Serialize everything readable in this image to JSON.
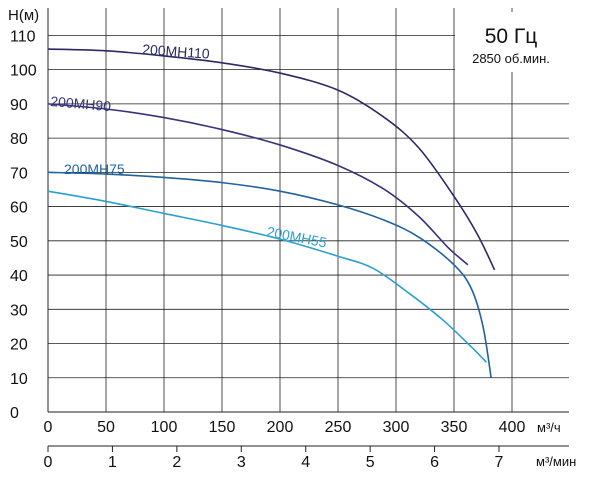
{
  "chart_data": {
    "type": "line",
    "ylabel": "H(м)",
    "xlabel_primary_unit": "м³/ч",
    "xlabel_secondary_unit": "м³/мин",
    "xlim": [
      0,
      400
    ],
    "ylim": [
      0,
      110
    ],
    "secondary_xlim": [
      0,
      7
    ],
    "y_ticks": [
      0,
      10,
      20,
      30,
      40,
      50,
      60,
      70,
      80,
      90,
      100,
      110
    ],
    "x_ticks": [
      0,
      50,
      100,
      150,
      200,
      250,
      300,
      350,
      400
    ],
    "secondary_x_ticks": [
      0,
      1,
      2,
      3,
      4,
      5,
      6,
      7
    ],
    "grid": true,
    "info": {
      "frequency": "50 Гц",
      "speed": "2850 об.мин."
    },
    "series": [
      {
        "name": "200MH110",
        "color": "#2b2a66",
        "x": [
          0,
          50,
          100,
          150,
          200,
          250,
          290,
          320,
          350,
          370,
          385
        ],
        "y": [
          106,
          105.5,
          104,
          102,
          99,
          94,
          86,
          77,
          63,
          52,
          41.5
        ]
      },
      {
        "name": "200MH90",
        "color": "#35337a",
        "x": [
          0,
          50,
          100,
          150,
          200,
          250,
          290,
          320,
          345,
          362
        ],
        "y": [
          90,
          88.5,
          86,
          82.5,
          78,
          72,
          65,
          57,
          48,
          43
        ]
      },
      {
        "name": "200MH75",
        "color": "#1f63a0",
        "x": [
          0,
          50,
          100,
          150,
          200,
          250,
          290,
          320,
          350,
          365,
          375,
          382
        ],
        "y": [
          70,
          69.5,
          68.5,
          67,
          64.5,
          60.5,
          56,
          51,
          43,
          36,
          25,
          10
        ]
      },
      {
        "name": "200MH55",
        "color": "#2aa0d0",
        "x": [
          0,
          50,
          100,
          150,
          200,
          250,
          280,
          310,
          340,
          365,
          378
        ],
        "y": [
          64.5,
          61.5,
          58,
          54.5,
          50.5,
          45.5,
          42,
          35,
          27,
          19,
          14.5
        ]
      }
    ]
  }
}
